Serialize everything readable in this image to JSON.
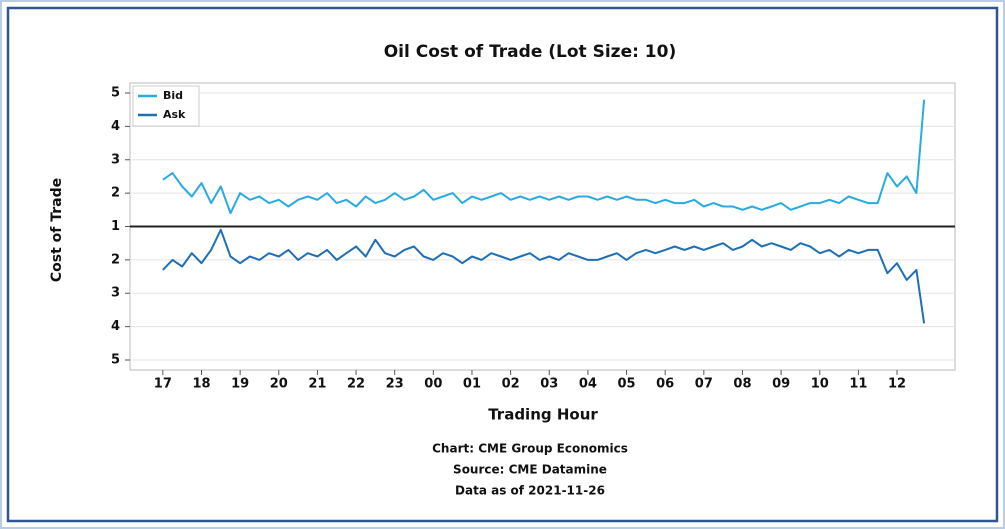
{
  "chart_data": {
    "type": "line",
    "title": "Oil Cost of Trade (Lot Size:  10)",
    "y_label": "Cost of Trade",
    "x_label": "Trading Hour",
    "annotations": [
      "Chart:  CME Group Economics",
      "Source:  CME Datamine",
      "Data as of 2021-11-26"
    ],
    "x": [
      17,
      17.25,
      17.5,
      17.75,
      18,
      18.25,
      18.5,
      18.75,
      19,
      19.25,
      19.5,
      19.75,
      20,
      20.25,
      20.5,
      20.75,
      21,
      21.25,
      21.5,
      21.75,
      22,
      22.25,
      22.5,
      22.75,
      23,
      23.25,
      23.5,
      23.75,
      24,
      24.25,
      24.5,
      24.75,
      25,
      25.25,
      25.5,
      25.75,
      26,
      26.25,
      26.5,
      26.75,
      27,
      27.25,
      27.5,
      27.75,
      28,
      28.25,
      28.5,
      28.75,
      29,
      29.25,
      29.5,
      29.75,
      30,
      30.25,
      30.5,
      30.75,
      31,
      31.25,
      31.5,
      31.75,
      32,
      32.25,
      32.5,
      32.75,
      33,
      33.25,
      33.5,
      33.75,
      34,
      34.25,
      34.5,
      34.75,
      35,
      35.25,
      35.5,
      35.75,
      36,
      36.25,
      36.5,
      36.7
    ],
    "series": [
      {
        "name": "Bid",
        "color": "#29abe2",
        "axis": "y",
        "values": [
          2.4,
          2.6,
          2.2,
          1.9,
          2.3,
          1.7,
          2.2,
          1.4,
          2.0,
          1.8,
          1.9,
          1.7,
          1.8,
          1.6,
          1.8,
          1.9,
          1.8,
          2.0,
          1.7,
          1.8,
          1.6,
          1.9,
          1.7,
          1.8,
          2.0,
          1.8,
          1.9,
          2.1,
          1.8,
          1.9,
          2.0,
          1.7,
          1.9,
          1.8,
          1.9,
          2.0,
          1.8,
          1.9,
          1.8,
          1.9,
          1.8,
          1.9,
          1.8,
          1.9,
          1.9,
          1.8,
          1.9,
          1.8,
          1.9,
          1.8,
          1.8,
          1.7,
          1.8,
          1.7,
          1.7,
          1.8,
          1.6,
          1.7,
          1.6,
          1.6,
          1.5,
          1.6,
          1.5,
          1.6,
          1.7,
          1.5,
          1.6,
          1.7,
          1.7,
          1.8,
          1.7,
          1.9,
          1.8,
          1.7,
          1.7,
          2.6,
          2.2,
          2.5,
          2.0,
          4.8
        ]
      },
      {
        "name": "Ask",
        "color": "#1f6fb5",
        "axis": "y2",
        "values": [
          2.3,
          2.0,
          2.2,
          1.8,
          2.1,
          1.7,
          1.1,
          1.9,
          2.1,
          1.9,
          2.0,
          1.8,
          1.9,
          1.7,
          2.0,
          1.8,
          1.9,
          1.7,
          2.0,
          1.8,
          1.6,
          1.9,
          1.4,
          1.8,
          1.9,
          1.7,
          1.6,
          1.9,
          2.0,
          1.8,
          1.9,
          2.1,
          1.9,
          2.0,
          1.8,
          1.9,
          2.0,
          1.9,
          1.8,
          2.0,
          1.9,
          2.0,
          1.8,
          1.9,
          2.0,
          2.0,
          1.9,
          1.8,
          2.0,
          1.8,
          1.7,
          1.8,
          1.7,
          1.6,
          1.7,
          1.6,
          1.7,
          1.6,
          1.5,
          1.7,
          1.6,
          1.4,
          1.6,
          1.5,
          1.6,
          1.7,
          1.5,
          1.6,
          1.8,
          1.7,
          1.9,
          1.7,
          1.8,
          1.7,
          1.7,
          2.4,
          2.1,
          2.6,
          2.3,
          3.9
        ]
      }
    ],
    "xlim": [
      16.15,
      37.5
    ],
    "xticks": [
      17,
      18,
      19,
      20,
      21,
      22,
      23,
      {
        "value": 24,
        "label": "00"
      },
      {
        "value": 25,
        "label": "01"
      },
      {
        "value": 26,
        "label": "02"
      },
      {
        "value": 27,
        "label": "03"
      },
      {
        "value": 28,
        "label": "04"
      },
      {
        "value": 29,
        "label": "05"
      },
      {
        "value": 30,
        "label": "06"
      },
      {
        "value": 31,
        "label": "07"
      },
      {
        "value": 32,
        "label": "08"
      },
      {
        "value": 33,
        "label": "09"
      },
      {
        "value": 34,
        "label": "10"
      },
      {
        "value": 35,
        "label": "11"
      },
      {
        "value": 36,
        "label": "12"
      }
    ],
    "ylim": [
      1,
      5.3
    ],
    "yticks": [
      1,
      2,
      3,
      4,
      5
    ],
    "y2lim": [
      1,
      5.3
    ],
    "y2ticks": [
      2,
      3,
      4,
      5
    ],
    "y2_inverted": true,
    "grid": true,
    "legend": "upper left"
  }
}
